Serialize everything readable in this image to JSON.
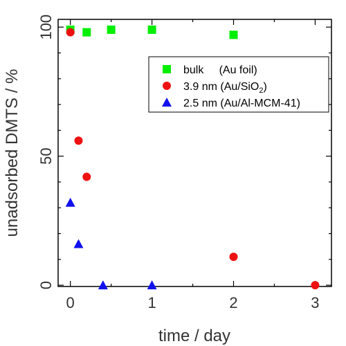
{
  "chart_data": {
    "type": "scatter",
    "xlabel": "time / day",
    "ylabel": "unadsorbed DMTS / %",
    "xlim": [
      -0.15,
      3.2
    ],
    "ylim": [
      -0.5,
      103
    ],
    "x_ticks": [
      0,
      1,
      2,
      3
    ],
    "y_ticks": [
      0,
      50,
      100
    ],
    "grid": false,
    "legend_position": "top-right",
    "series": [
      {
        "name": "bulk     (Au foil)",
        "marker": "square",
        "color": "#00ee00",
        "points": [
          [
            0,
            99
          ],
          [
            0.2,
            98
          ],
          [
            0.5,
            99
          ],
          [
            1,
            99
          ],
          [
            2,
            97
          ]
        ]
      },
      {
        "name": "3.9 nm (Au/SiO",
        "name_sub": "2",
        "name_suffix": ")",
        "marker": "circle",
        "color": "#ee1111",
        "points": [
          [
            0,
            98
          ],
          [
            0.1,
            56
          ],
          [
            0.2,
            42
          ],
          [
            2,
            11
          ],
          [
            3,
            0
          ]
        ]
      },
      {
        "name": "2.5 nm (Au/Al-MCM-41)",
        "marker": "triangle",
        "color": "#1111ee",
        "points": [
          [
            0,
            32
          ],
          [
            0.1,
            16
          ],
          [
            0.4,
            0
          ],
          [
            1,
            0
          ]
        ]
      }
    ]
  }
}
